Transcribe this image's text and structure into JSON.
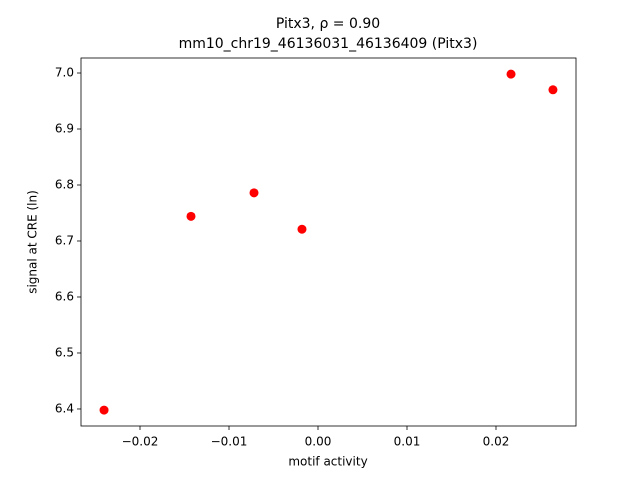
{
  "chart_data": {
    "type": "scatter",
    "title": "Pitx3, ρ = 0.90",
    "subtitle": "mm10_chr19_46136031_46136409 (Pitx3)",
    "x_label": "motif activity",
    "y_label": "signal at CRE (ln)",
    "color": "#ff0000",
    "x": [
      -0.02404,
      -0.01427,
      -0.00719,
      -0.0018,
      0.02169,
      0.0264
    ],
    "values": [
      6.398,
      6.744,
      6.786,
      6.721,
      6.998,
      6.97
    ],
    "xlim": [
      -0.02663,
      0.02899
    ],
    "ylim": [
      6.3696,
      7.0268
    ],
    "xticks": [
      {
        "value": -0.02,
        "label": "−0.02"
      },
      {
        "value": -0.01,
        "label": "−0.01"
      },
      {
        "value": 0,
        "label": "0.00"
      },
      {
        "value": 0.01,
        "label": "0.01"
      },
      {
        "value": 0.02,
        "label": "0.02"
      }
    ],
    "yticks": [
      6.4,
      6.5,
      6.6,
      6.7,
      6.8,
      6.9,
      {
        "value": 7,
        "label": "7.0"
      }
    ]
  }
}
